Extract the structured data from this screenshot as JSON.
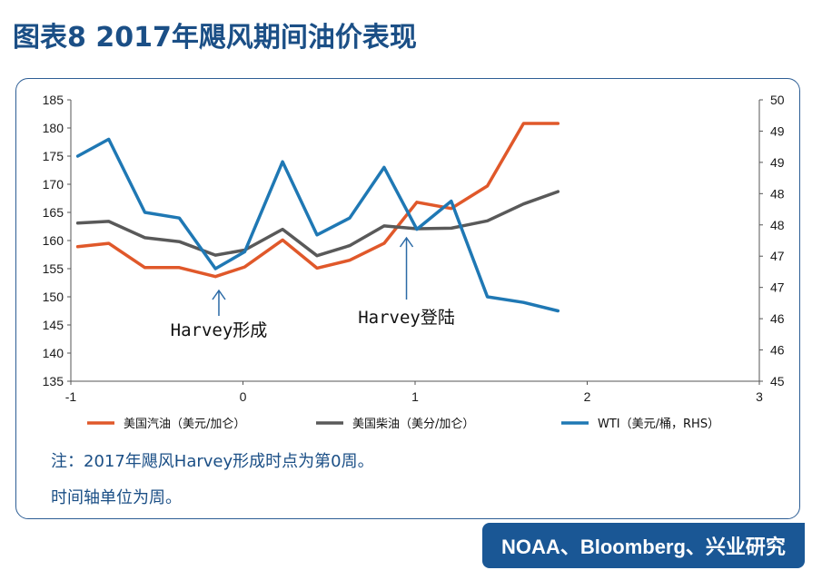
{
  "title": "图表8 2017年飓风期间油价表现",
  "notes": [
    "注：2017年飓风Harvey形成时点为第0周。",
    "时间轴单位为周。"
  ],
  "source": "NOAA、Bloomberg、兴业研究",
  "chart_data": {
    "type": "line",
    "x_ticks": [
      "-1",
      "0",
      "1",
      "2",
      "3"
    ],
    "xlim": [
      -1,
      3
    ],
    "ylim_left": [
      135,
      185
    ],
    "y_ticks_left": [
      "135",
      "140",
      "145",
      "150",
      "155",
      "160",
      "165",
      "170",
      "175",
      "180",
      "185"
    ],
    "ylim_right": [
      45,
      50
    ],
    "y_ticks_right": [
      "45",
      "46",
      "46",
      "47",
      "47",
      "48",
      "48",
      "49",
      "49",
      "50"
    ],
    "annotations": [
      {
        "text": "Harvey形成",
        "x": -0.14
      },
      {
        "text": "Harvey登陆",
        "x": 0.95
      }
    ],
    "series": [
      {
        "name": "美国汽油（美元/加仑）",
        "axis": "left",
        "color": "#e0582a",
        "x": [
          -0.96,
          -0.78,
          -0.57,
          -0.37,
          -0.16,
          0.01,
          0.23,
          0.43,
          0.62,
          0.82,
          1.01,
          1.21,
          1.42,
          1.63,
          1.83
        ],
        "values": [
          158.9,
          159.5,
          155.2,
          155.2,
          153.6,
          155.3,
          160.1,
          155.1,
          156.5,
          159.5,
          166.8,
          165.7,
          169.7,
          180.8,
          180.8
        ]
      },
      {
        "name": "美国柴油（美分/加仑）",
        "axis": "left",
        "color": "#595959",
        "x": [
          -0.96,
          -0.78,
          -0.57,
          -0.37,
          -0.16,
          0.01,
          0.23,
          0.43,
          0.62,
          0.82,
          1.01,
          1.21,
          1.42,
          1.63,
          1.83
        ],
        "values": [
          163.1,
          163.4,
          160.5,
          159.8,
          157.4,
          158.3,
          162.0,
          157.3,
          159.1,
          162.6,
          162.1,
          162.2,
          163.5,
          166.5,
          168.7
        ]
      },
      {
        "name": "WTI（美元/桶，RHS）",
        "axis": "right",
        "color": "#1f78b4",
        "x": [
          -0.96,
          -0.78,
          -0.57,
          -0.37,
          -0.16,
          0.01,
          0.23,
          0.43,
          0.62,
          0.82,
          1.01,
          1.21,
          1.42,
          1.63,
          1.83
        ],
        "values": [
          49.0,
          49.3,
          48.0,
          47.9,
          47.0,
          47.3,
          48.9,
          47.6,
          47.9,
          48.8,
          47.7,
          48.2,
          46.5,
          46.4,
          46.25
        ]
      }
    ],
    "legend_position": "bottom",
    "grid": false
  }
}
